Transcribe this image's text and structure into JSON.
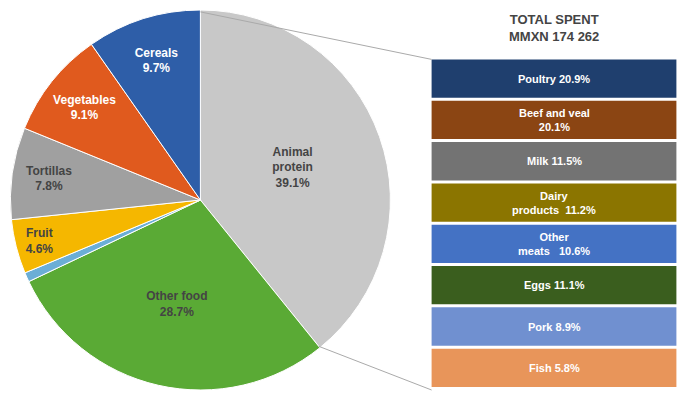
{
  "chart_data": {
    "type": "pie",
    "title": "TOTAL SPENT\nMMXN 174 262",
    "categories": [
      "Animal\nprotein",
      "Other food",
      null,
      "Fruit",
      "Tortillas",
      "Vegetables",
      "Cereals"
    ],
    "values": [
      39.1,
      28.7,
      0.8,
      4.6,
      7.8,
      9.1,
      9.7
    ],
    "value_labels": [
      "39.1%",
      "28.7%",
      null,
      "4.6%",
      "7.8%",
      "9.1%",
      "9.7%"
    ],
    "colors": [
      "#c8c8c8",
      "#5aaa35",
      "#6baed6",
      "#f5b700",
      "#a0a0a0",
      "#e05a1e",
      "#2e5ea8"
    ],
    "annotations": [
      {
        "text": "Poultry 20.9%",
        "color": "#1f3f6e"
      },
      {
        "text": "Beef and veal\n20.1%",
        "color": "#8b4513"
      },
      {
        "text": "Milk 11.5%",
        "color": "#737373"
      },
      {
        "text": "Dairy\nproducts  11.2%",
        "color": "#8b7500"
      },
      {
        "text": "Other\nmeats   10.6%",
        "color": "#4472c4"
      },
      {
        "text": "Eggs 11.1%",
        "color": "#3a5e1e"
      },
      {
        "text": "Pork 8.9%",
        "color": "#7090d0"
      },
      {
        "text": "Fish 5.8%",
        "color": "#e8955a"
      }
    ]
  }
}
